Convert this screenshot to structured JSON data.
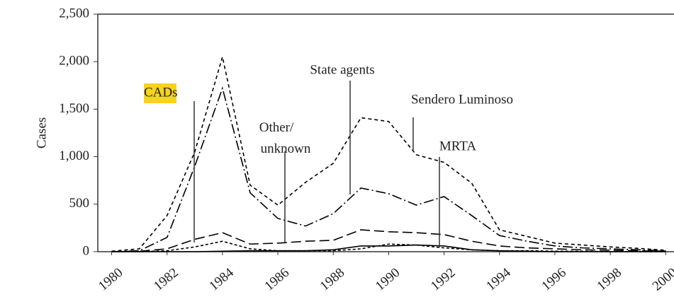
{
  "chart_data": {
    "type": "line",
    "y_label": "Cases",
    "x": [
      1980,
      1981,
      1982,
      1983,
      1984,
      1985,
      1986,
      1987,
      1988,
      1989,
      1990,
      1991,
      1992,
      1993,
      1994,
      1995,
      1996,
      1997,
      1998,
      1999,
      2000
    ],
    "xlim": [
      1979.5,
      2000.3
    ],
    "xticks": [
      1980,
      1982,
      1984,
      1986,
      1988,
      1990,
      1992,
      1994,
      1996,
      1998,
      2000
    ],
    "ylim": [
      0,
      2500
    ],
    "yticks": [
      0,
      500,
      {
        "value": 1000,
        "label": "1,000"
      },
      {
        "value": 1500,
        "label": "1,500"
      },
      {
        "value": 2000,
        "label": "2,000"
      },
      {
        "value": 2500,
        "label": "2,500"
      }
    ],
    "series": [
      {
        "name": "Sendero Luminoso",
        "color": "#000",
        "style": "dashed",
        "values": [
          5,
          30,
          380,
          1050,
          2050,
          700,
          490,
          730,
          930,
          1410,
          1370,
          1020,
          940,
          720,
          230,
          160,
          90,
          70,
          50,
          35,
          15
        ]
      },
      {
        "name": "State agents",
        "color": "#000",
        "style": "dashdot",
        "values": [
          0,
          10,
          150,
          900,
          1720,
          620,
          350,
          270,
          400,
          670,
          610,
          490,
          580,
          380,
          170,
          110,
          60,
          40,
          30,
          20,
          10
        ]
      },
      {
        "name": "Other/ unknown",
        "color": "#000",
        "style": "longdash",
        "values": [
          0,
          5,
          30,
          130,
          200,
          80,
          90,
          110,
          120,
          230,
          210,
          200,
          180,
          110,
          60,
          40,
          30,
          20,
          15,
          10,
          5
        ]
      },
      {
        "name": "CADs",
        "color": "#000",
        "style": "dotted",
        "values": [
          0,
          0,
          10,
          50,
          110,
          30,
          10,
          10,
          10,
          30,
          80,
          70,
          40,
          20,
          10,
          10,
          5,
          5,
          0,
          0,
          0
        ]
      },
      {
        "name": "MRTA",
        "color": "#000",
        "style": "solid",
        "values": [
          0,
          0,
          0,
          0,
          5,
          10,
          10,
          10,
          20,
          60,
          60,
          70,
          60,
          20,
          10,
          5,
          0,
          0,
          0,
          0,
          0
        ]
      }
    ]
  }
}
